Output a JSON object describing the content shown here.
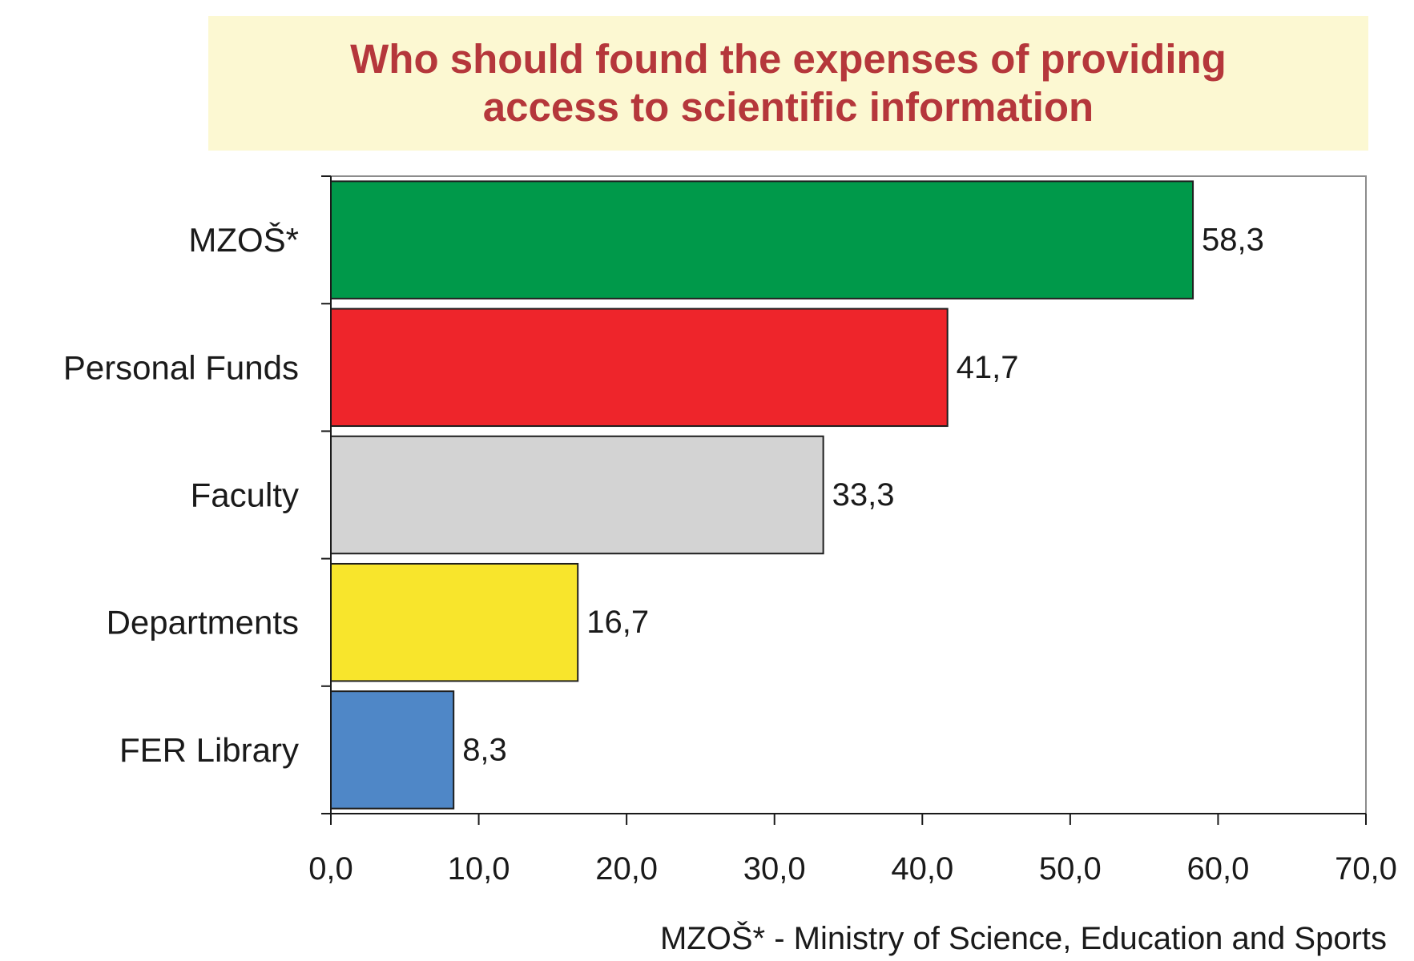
{
  "chart_data": {
    "type": "bar",
    "orientation": "horizontal",
    "title_lines": [
      "Who should found the expenses of providing",
      "access to scientific information"
    ],
    "categories": [
      "MZOŠ*",
      "Personal Funds",
      "Faculty",
      "Departments",
      "FER Library"
    ],
    "values": [
      58.3,
      41.7,
      33.3,
      16.7,
      8.3
    ],
    "value_labels": [
      "58,3",
      "41,7",
      "33,3",
      "16,7",
      "8,3"
    ],
    "colors": [
      "#00994a",
      "#ee252b",
      "#d3d3d3",
      "#f8e52c",
      "#4f87c7"
    ],
    "xlim": [
      0,
      70
    ],
    "x_ticks": [
      0,
      10,
      20,
      30,
      40,
      50,
      60,
      70
    ],
    "x_tick_labels": [
      "0,0",
      "10,0",
      "20,0",
      "30,0",
      "40,0",
      "50,0",
      "60,0",
      "70,0"
    ],
    "grid": false,
    "footnote": "MZOŠ* - Ministry of Science, Education and Sports"
  }
}
